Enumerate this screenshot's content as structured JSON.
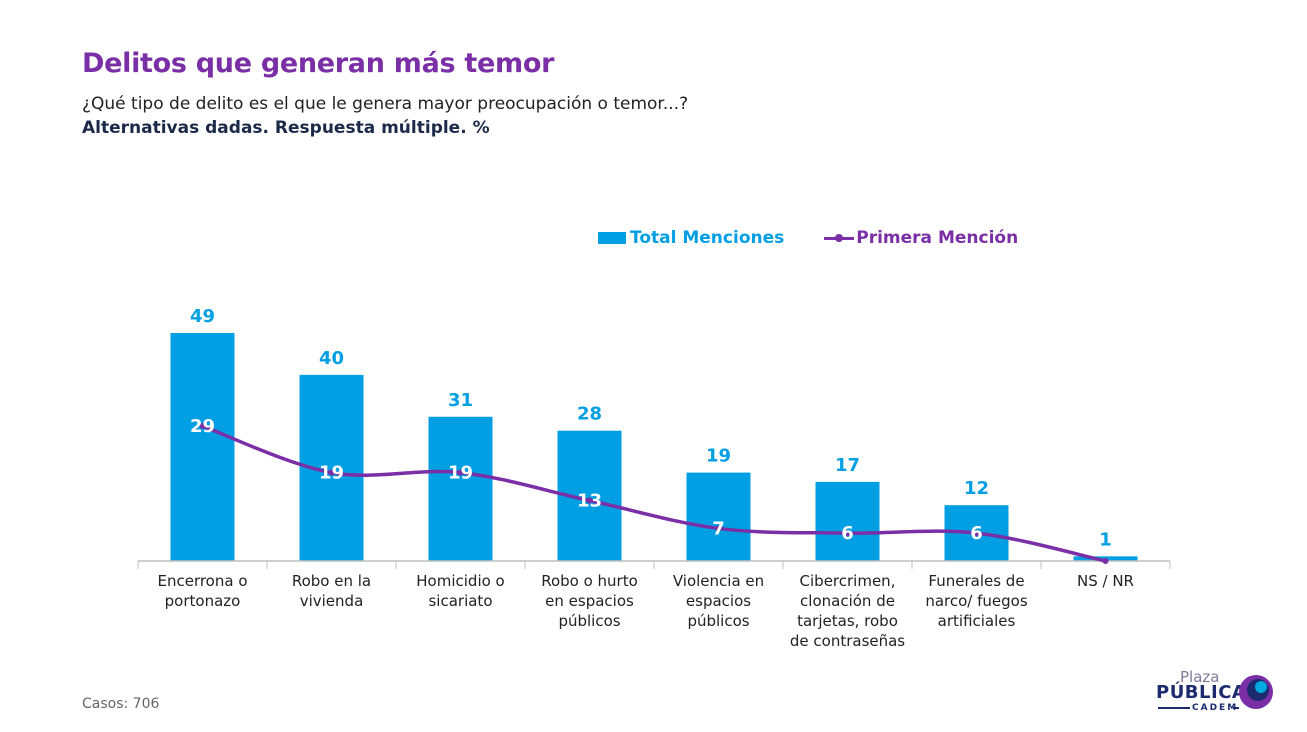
{
  "header": {
    "title": "Delitos que generan más temor",
    "question": "¿Qué tipo de delito es el que le genera mayor preocupación o temor...?",
    "note": "Alternativas dadas. Respuesta múltiple. %"
  },
  "legend": {
    "bar_label": "Total Menciones",
    "line_label": "Primera Mención"
  },
  "colors": {
    "bar": "#009FE3",
    "line": "#7B2FA6",
    "axis": "#bfbfbf",
    "category_text": "#222222"
  },
  "chart_data": {
    "type": "bar",
    "title": "Delitos que generan más temor",
    "xlabel": "",
    "ylabel": "%",
    "ylim": [
      0,
      49
    ],
    "grid": false,
    "legend_position": "top-right",
    "categories": [
      [
        "Encerrona o",
        "portonazo"
      ],
      [
        "Robo en la",
        "vivienda"
      ],
      [
        "Homicidio o",
        "sicariato"
      ],
      [
        "Robo o hurto",
        "en espacios",
        "públicos"
      ],
      [
        "Violencia en",
        "espacios",
        "públicos"
      ],
      [
        "Cibercrimen,",
        "clonación de",
        "tarjetas, robo",
        "de contraseñas"
      ],
      [
        "Funerales de",
        "narco/ fuegos",
        "artificiales"
      ],
      [
        "NS / NR"
      ]
    ],
    "series": [
      {
        "name": "Total Menciones",
        "type": "bar",
        "values": [
          49,
          40,
          31,
          28,
          19,
          17,
          12,
          1
        ]
      },
      {
        "name": "Primera Mención",
        "type": "line",
        "values": [
          29,
          19,
          19,
          13,
          7,
          6,
          6,
          0
        ]
      }
    ],
    "line_labels": [
      "29",
      "19",
      "19",
      "13",
      "7",
      "6",
      "6",
      ""
    ]
  },
  "footer": {
    "cases": "Casos: 706"
  },
  "logo": {
    "plaza": "Plaza",
    "publica": "PÚBLICA",
    "cadem": "CADEM"
  }
}
